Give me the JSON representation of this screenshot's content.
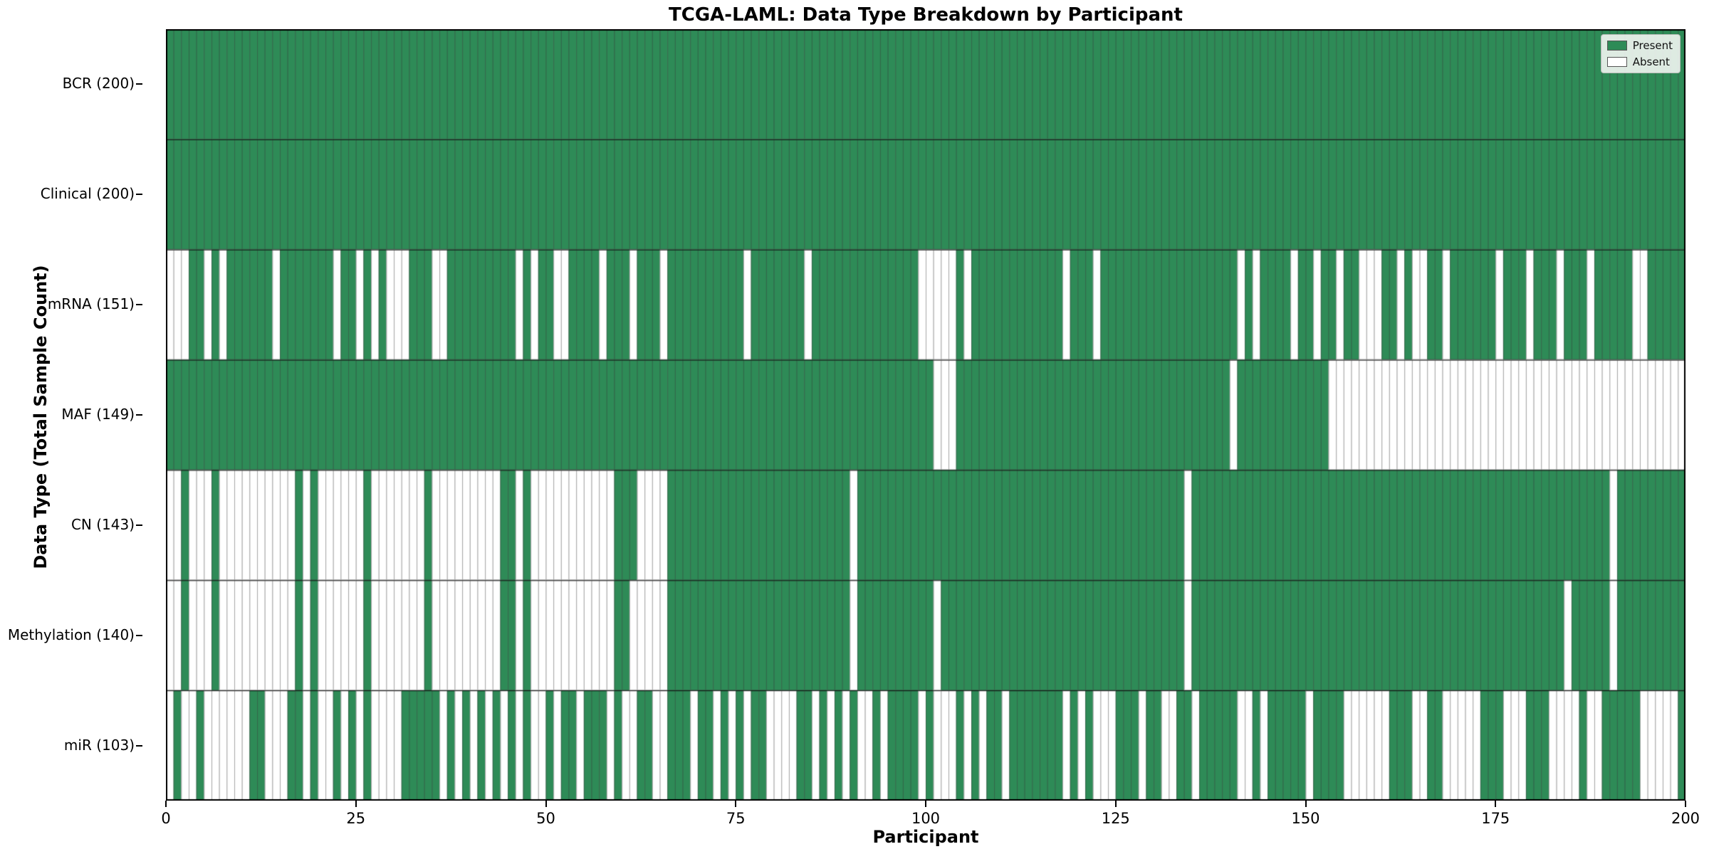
{
  "chart_data": {
    "type": "heatmap",
    "title": "TCGA-LAML: Data Type Breakdown by Participant",
    "x_axis": {
      "label": "Participant",
      "range": [
        0,
        200
      ],
      "ticks": [
        0,
        25,
        50,
        75,
        100,
        125,
        150,
        175,
        200
      ]
    },
    "y_axis": {
      "label": "Data Type (Total Sample Count)"
    },
    "n_participants": 200,
    "cell_states": [
      "Present",
      "Absent"
    ],
    "colors": {
      "present": "#2e8b57",
      "absent": "#ffffff",
      "cell_edge": "rgba(60,60,60,0.45)",
      "row_divider": "rgba(0,0,0,0.85)",
      "frame": "#000000"
    },
    "legend": {
      "position": "upper right",
      "entries": [
        {
          "label": "Present",
          "color": "#2e8b57"
        },
        {
          "label": "Absent",
          "color": "#ffffff"
        }
      ]
    },
    "rows": [
      {
        "label": "BCR (200)",
        "data_type": "BCR",
        "present_count": 200,
        "absent_participants": []
      },
      {
        "label": "Clinical (200)",
        "data_type": "Clinical",
        "present_count": 200,
        "absent_participants": []
      },
      {
        "label": "mRNA (151)",
        "data_type": "mRNA",
        "present_count": 151,
        "absent_participants": [
          0,
          1,
          2,
          5,
          7,
          14,
          22,
          25,
          27,
          29,
          30,
          31,
          35,
          36,
          46,
          48,
          51,
          52,
          57,
          61,
          65,
          76,
          84,
          99,
          100,
          101,
          102,
          103,
          105,
          118,
          122,
          141,
          143,
          148,
          151,
          154,
          157,
          158,
          159,
          162,
          164,
          165,
          168,
          175,
          179,
          183,
          187,
          193,
          194
        ]
      },
      {
        "label": "MAF (149)",
        "data_type": "MAF",
        "present_count": 149,
        "absent_participants": [
          101,
          102,
          103,
          140,
          153,
          154,
          155,
          156,
          157,
          158,
          159,
          160,
          161,
          162,
          163,
          164,
          165,
          166,
          167,
          168,
          169,
          170,
          171,
          172,
          173,
          174,
          175,
          176,
          177,
          178,
          179,
          180,
          181,
          182,
          183,
          184,
          185,
          186,
          187,
          188,
          189,
          190,
          191,
          192,
          193,
          194,
          195,
          196,
          197,
          198,
          199
        ]
      },
      {
        "label": "CN (143)",
        "data_type": "CN",
        "present_count": 143,
        "absent_participants": [
          0,
          1,
          3,
          4,
          5,
          7,
          8,
          9,
          10,
          11,
          12,
          13,
          14,
          15,
          16,
          18,
          20,
          21,
          22,
          23,
          24,
          25,
          27,
          28,
          29,
          30,
          31,
          32,
          33,
          35,
          36,
          37,
          38,
          39,
          40,
          41,
          42,
          43,
          46,
          48,
          49,
          50,
          51,
          52,
          53,
          54,
          55,
          56,
          57,
          58,
          62,
          63,
          64,
          65,
          90,
          134,
          190
        ]
      },
      {
        "label": "Methylation (140)",
        "data_type": "Methylation",
        "present_count": 140,
        "absent_participants": [
          0,
          1,
          3,
          4,
          5,
          7,
          8,
          9,
          10,
          11,
          12,
          13,
          14,
          15,
          16,
          18,
          20,
          21,
          22,
          23,
          24,
          25,
          27,
          28,
          29,
          30,
          31,
          32,
          33,
          35,
          36,
          37,
          38,
          39,
          40,
          41,
          42,
          43,
          46,
          48,
          49,
          50,
          51,
          52,
          53,
          54,
          55,
          56,
          57,
          58,
          61,
          62,
          63,
          64,
          65,
          90,
          101,
          134,
          184,
          190
        ]
      },
      {
        "label": "miR (103)",
        "data_type": "miR",
        "present_count": 103,
        "absent_participants": [
          0,
          2,
          3,
          5,
          6,
          7,
          8,
          9,
          10,
          13,
          14,
          15,
          18,
          20,
          21,
          23,
          25,
          27,
          28,
          29,
          30,
          36,
          38,
          40,
          42,
          44,
          46,
          48,
          49,
          51,
          54,
          58,
          60,
          61,
          64,
          65,
          69,
          72,
          74,
          76,
          79,
          80,
          81,
          82,
          85,
          87,
          89,
          91,
          92,
          94,
          99,
          101,
          102,
          103,
          105,
          107,
          110,
          118,
          120,
          122,
          123,
          124,
          128,
          131,
          132,
          135,
          141,
          142,
          144,
          150,
          155,
          156,
          157,
          158,
          159,
          160,
          164,
          165,
          168,
          169,
          170,
          171,
          172,
          176,
          177,
          178,
          182,
          183,
          184,
          185,
          187,
          188,
          194,
          195,
          196,
          197,
          198
        ]
      }
    ]
  }
}
